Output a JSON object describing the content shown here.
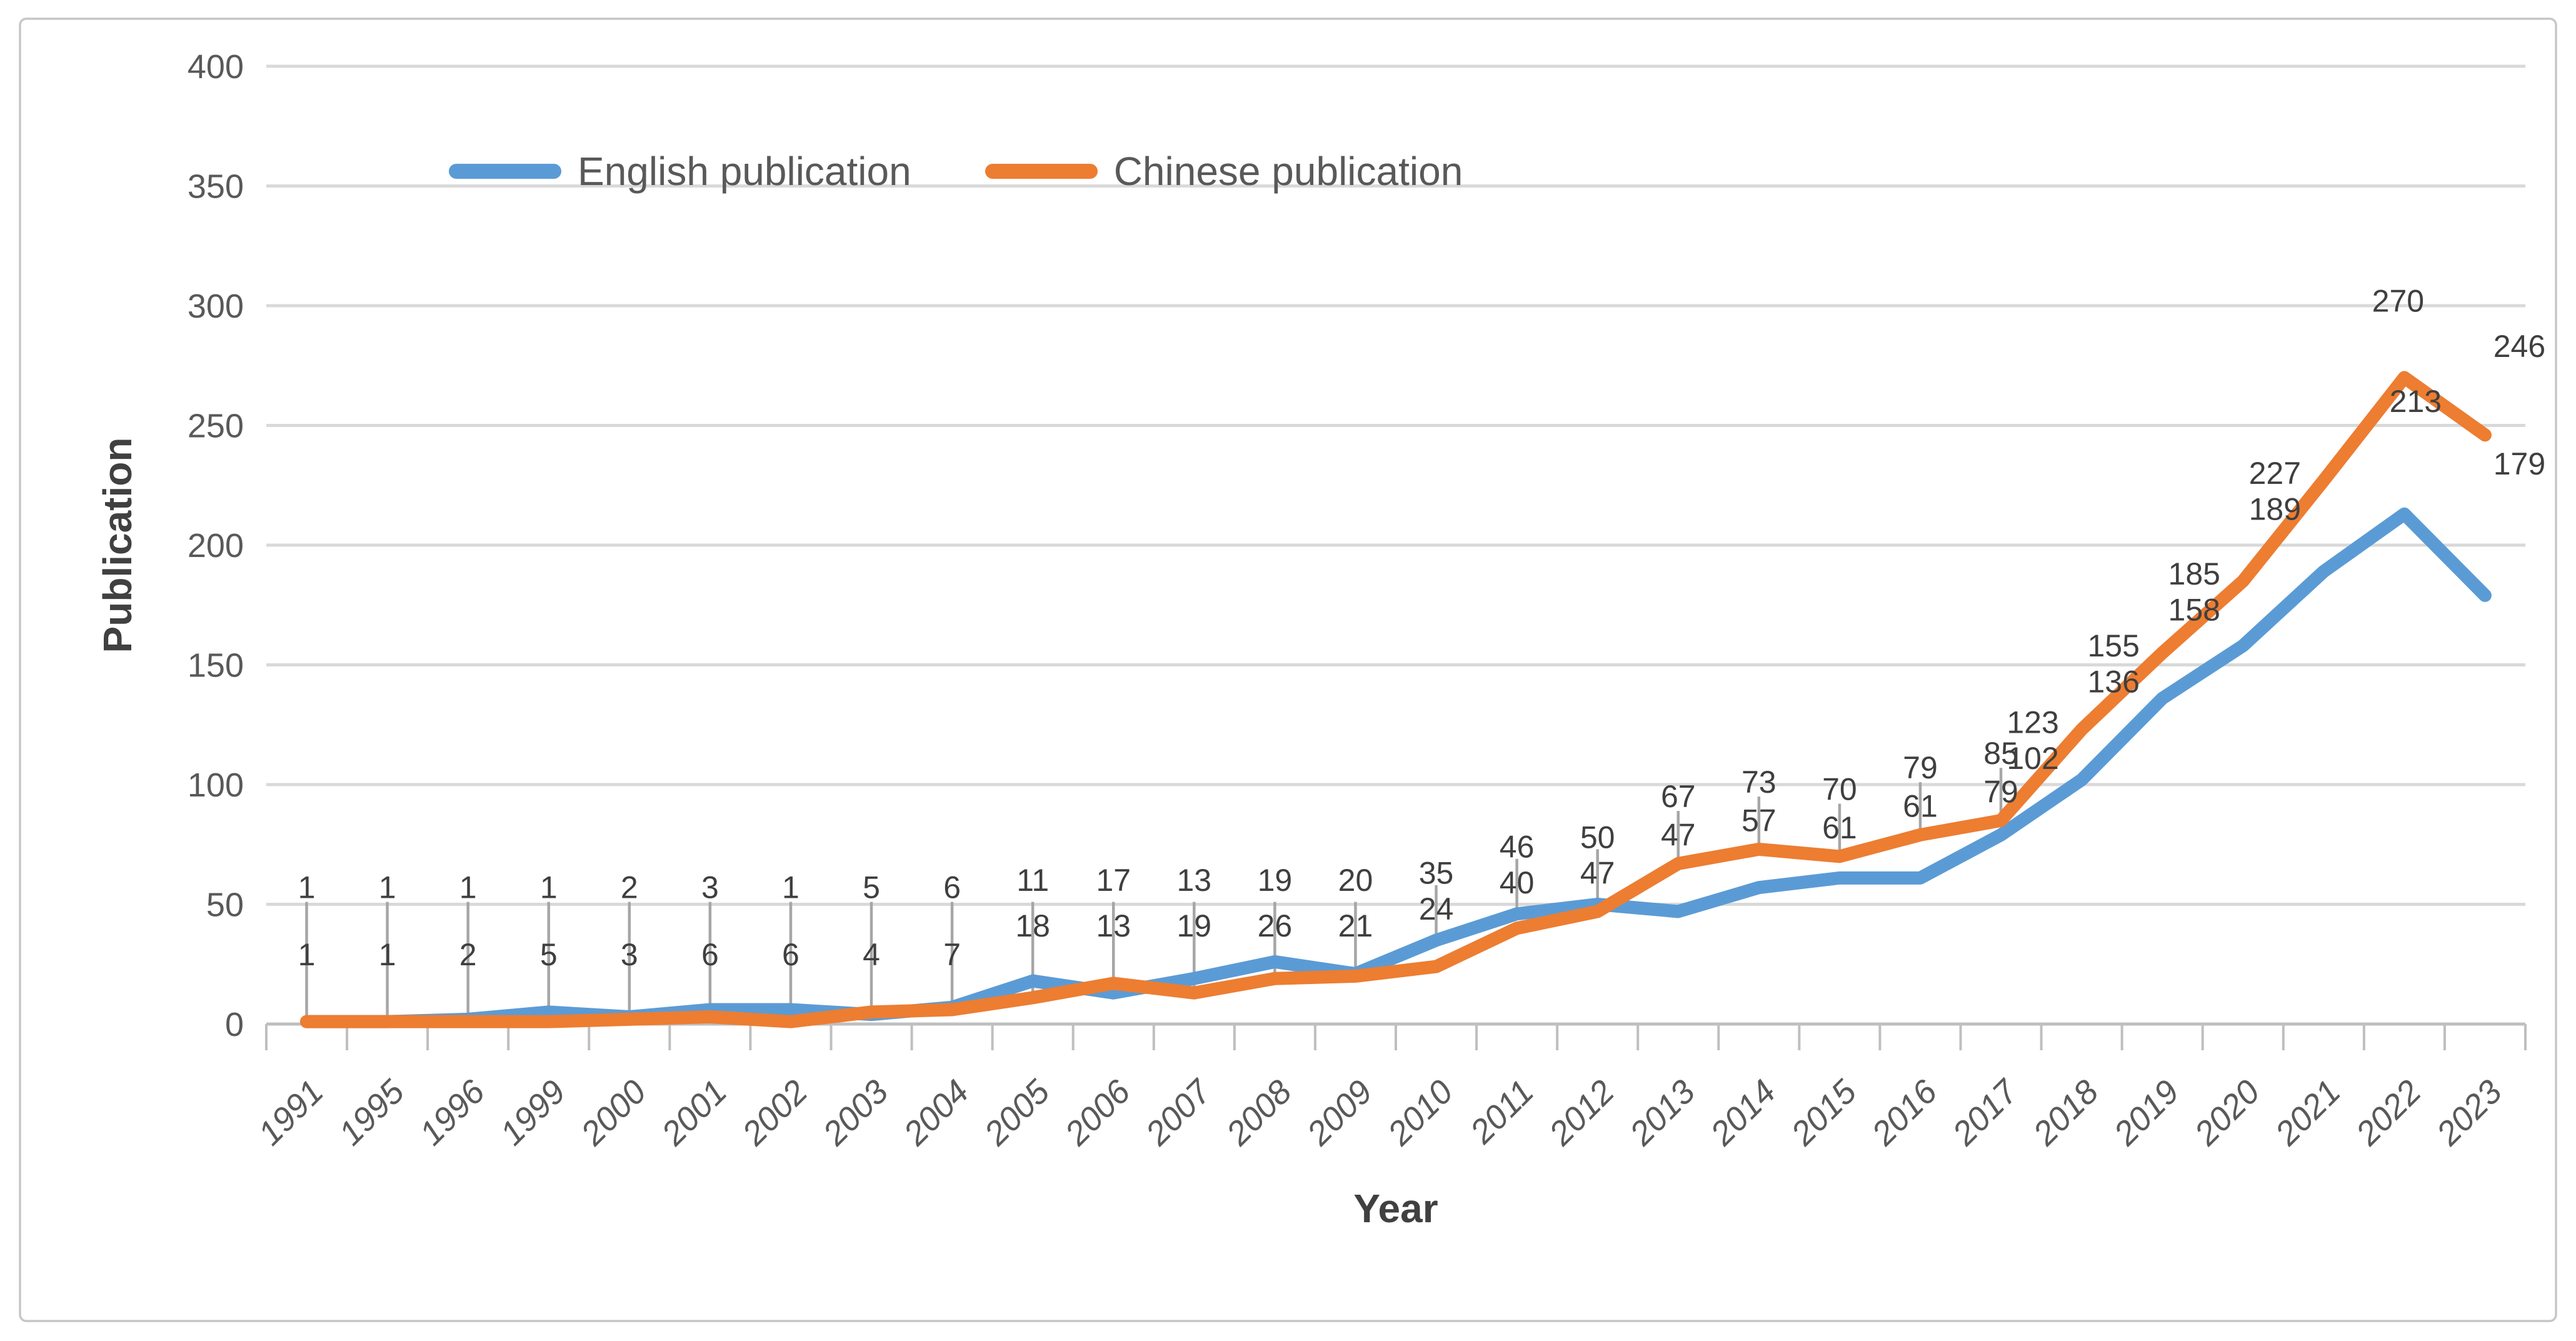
{
  "chart_data": {
    "type": "line",
    "title": "",
    "categories": [
      "1991",
      "1995",
      "1996",
      "1999",
      "2000",
      "2001",
      "2002",
      "2003",
      "2004",
      "2005",
      "2006",
      "2007",
      "2008",
      "2009",
      "2010",
      "2011",
      "2012",
      "2013",
      "2014",
      "2015",
      "2016",
      "2017",
      "2018",
      "2019",
      "2020",
      "2021",
      "2022",
      "2023"
    ],
    "series": [
      {
        "name": "English publication",
        "color": "#5B9BD5",
        "values": [
          1,
          1,
          2,
          5,
          3,
          6,
          6,
          4,
          7,
          18,
          13,
          19,
          26,
          21,
          35,
          46,
          50,
          47,
          57,
          61,
          61,
          79,
          102,
          136,
          158,
          189,
          213,
          179
        ]
      },
      {
        "name": "Chinese publication",
        "color": "#ED7D31",
        "values": [
          1,
          1,
          1,
          1,
          2,
          3,
          1,
          5,
          6,
          11,
          17,
          13,
          19,
          20,
          24,
          40,
          47,
          67,
          73,
          70,
          79,
          85,
          123,
          155,
          185,
          227,
          270,
          246
        ]
      }
    ],
    "xlabel": "Year",
    "ylabel": "Publication",
    "ylim": [
      0,
      400
    ],
    "y_ticks": [
      0,
      50,
      100,
      150,
      200,
      250,
      300,
      350,
      400
    ],
    "grid": true,
    "legend_position": "top",
    "data_labels_shown": true
  },
  "legend": {
    "items": [
      {
        "label": "English publication",
        "color": "#5B9BD5"
      },
      {
        "label": "Chinese publication",
        "color": "#ED7D31"
      }
    ]
  },
  "axes": {
    "x_title": "Year",
    "y_title": "Publication"
  },
  "colors": {
    "grid": "#D9D9D9",
    "axis_line": "#BFBFBF",
    "tick_text": "#595959",
    "data_label_text": "#3F3F3F",
    "leader_line": "#A6A6A6",
    "frame_border": "#C6C6C6",
    "background": "#FFFFFF"
  }
}
